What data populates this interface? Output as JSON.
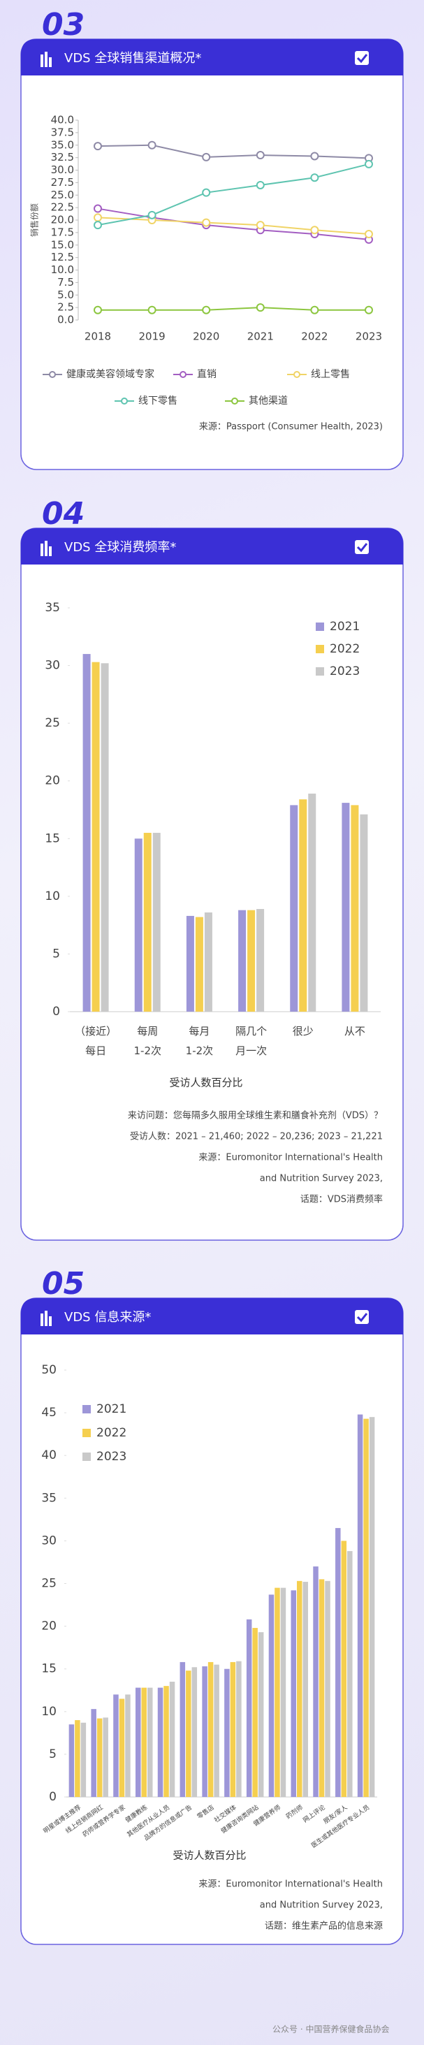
{
  "chart_data": [
    {
      "type": "line",
      "section": "03",
      "title": "VDS 全球销售渠道概况*",
      "ylabel": "销售份额",
      "x": [
        "2018",
        "2019",
        "2020",
        "2021",
        "2022",
        "2023"
      ],
      "ylim": [
        0,
        40
      ],
      "yticks": [
        {
          "value": 0,
          "label": "0.0"
        },
        {
          "value": 2.5,
          "label": "2.5"
        },
        {
          "value": 5,
          "label": "5.0"
        },
        {
          "value": 7.5,
          "label": "7.5"
        },
        {
          "value": 10,
          "label": "10.0"
        },
        {
          "value": 12.5,
          "label": "12.5"
        },
        {
          "value": 15,
          "label": "15.0"
        },
        {
          "value": 17.5,
          "label": "17.5"
        },
        {
          "value": 20,
          "label": "20.0"
        },
        {
          "value": 22.5,
          "label": "22.5"
        },
        {
          "value": 25,
          "label": "25.0"
        },
        {
          "value": 27.5,
          "label": "27.5"
        },
        {
          "value": 30,
          "label": "30.0"
        },
        {
          "value": 32.5,
          "label": "32.5"
        },
        {
          "value": 35,
          "label": "35.0"
        },
        {
          "value": 37.5,
          "label": "37.5"
        },
        {
          "value": 40,
          "label": "40.0"
        }
      ],
      "series": [
        {
          "name": "健康或美容领域专家",
          "color": "#8e8aa6",
          "values": [
            34.8,
            35.0,
            32.6,
            33.0,
            32.8,
            32.4
          ]
        },
        {
          "name": "直销",
          "color": "#a35ec2",
          "values": [
            22.3,
            20.5,
            19.0,
            18.0,
            17.2,
            16.1
          ]
        },
        {
          "name": "线上零售",
          "color": "#f0d466",
          "values": [
            20.5,
            20.0,
            19.5,
            19.0,
            18.0,
            17.2
          ]
        },
        {
          "name": "线下零售",
          "color": "#5ec4b0",
          "values": [
            19.0,
            21.0,
            25.5,
            27.0,
            28.5,
            31.2
          ]
        },
        {
          "name": "其他渠道",
          "color": "#8cc63f",
          "values": [
            2.0,
            2.0,
            2.0,
            2.5,
            2.0,
            2.0
          ]
        }
      ],
      "notes": [
        "来源：Passport (Consumer Health, 2023)"
      ]
    },
    {
      "type": "bar",
      "section": "04",
      "title": "VDS 全球消费频率*",
      "xlabel": "受访人数百分比",
      "categories": [
        "（接近）\n每日",
        "每周\n1-2次",
        "每月\n1-2次",
        "隔几个\n月一次",
        "很少",
        "从不"
      ],
      "ylim": [
        0,
        35
      ],
      "yticks": [
        0,
        5,
        10,
        15,
        20,
        25,
        30,
        35
      ],
      "series": [
        {
          "name": "2021",
          "color": "#9d96d8",
          "values": [
            31.0,
            15.0,
            8.3,
            8.8,
            17.9,
            18.1
          ]
        },
        {
          "name": "2022",
          "color": "#f5cf4f",
          "values": [
            30.3,
            15.5,
            8.2,
            8.8,
            18.4,
            17.9
          ]
        },
        {
          "name": "2023",
          "color": "#c9c9c9",
          "values": [
            30.2,
            15.5,
            8.6,
            8.9,
            18.9,
            17.1
          ]
        }
      ],
      "notes": [
        "来访问题：您每隔多久服用全球维生素和膳食补充剂（VDS）？",
        "受访人数：2021 – 21,460; 2022 – 20,236; 2023 – 21,221",
        "来源：Euromonitor International's Health",
        "and Nutrition Survey 2023,",
        "话题：VDS消费频率"
      ]
    },
    {
      "type": "bar",
      "section": "05",
      "title": "VDS 信息来源*",
      "xlabel": "受访人数百分比",
      "categories": [
        "明星或博主推荐",
        "线上经销商网红",
        "药师或营养学专家",
        "健康教练",
        "其他医疗从业人员",
        "品牌方的信息或广告",
        "零售店",
        "社交媒体",
        "健康咨询类网站",
        "健康营养师",
        "药剂师",
        "网上评论",
        "朋友/家人",
        "医生或其他医疗专业人员"
      ],
      "ylim": [
        0,
        50
      ],
      "yticks": [
        0,
        5,
        10,
        15,
        20,
        25,
        30,
        35,
        40,
        45,
        50
      ],
      "series": [
        {
          "name": "2021",
          "color": "#9d96d8",
          "values": [
            8.5,
            10.3,
            12.0,
            12.8,
            12.8,
            15.8,
            15.3,
            15.0,
            20.8,
            23.7,
            24.2,
            27.0,
            31.5,
            44.8
          ]
        },
        {
          "name": "2022",
          "color": "#f5cf4f",
          "values": [
            9.0,
            9.2,
            11.5,
            12.8,
            13.0,
            14.8,
            15.8,
            15.8,
            19.8,
            24.5,
            25.3,
            25.5,
            30.0,
            44.3
          ]
        },
        {
          "name": "2023",
          "color": "#c9c9c9",
          "values": [
            8.7,
            9.3,
            12.0,
            12.8,
            13.5,
            15.2,
            15.5,
            15.9,
            19.3,
            24.5,
            25.2,
            25.3,
            28.8,
            44.5
          ]
        }
      ],
      "notes": [
        "来源：Euromonitor International's Health",
        "and Nutrition Survey 2023,",
        "话题：维生素产品的信息来源"
      ]
    }
  ],
  "footer": "公众号 · 中国营养保健食品协会"
}
